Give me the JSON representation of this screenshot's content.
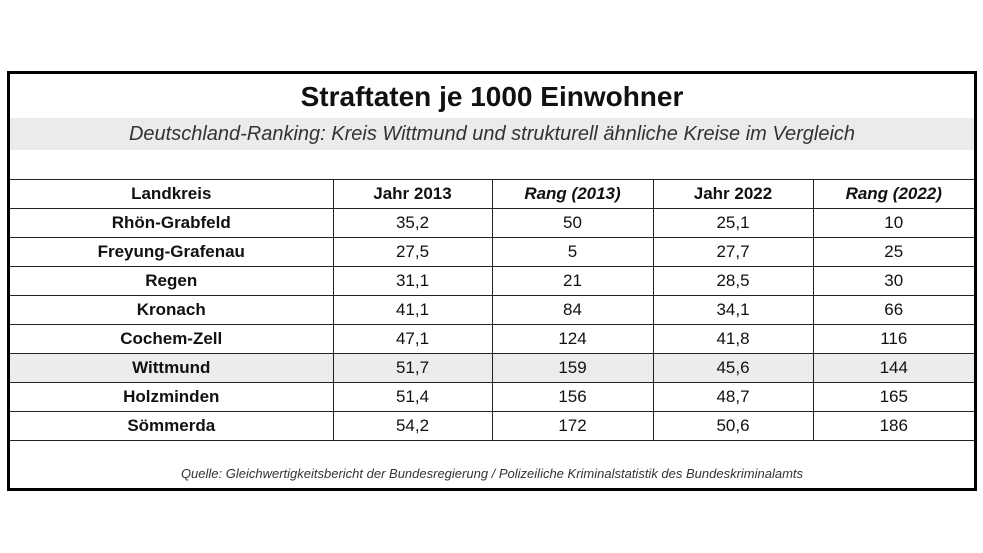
{
  "title": "Straftaten je 1000 Einwohner",
  "subtitle": "Deutschland-Ranking: Kreis Wittmund und strukturell ähnliche Kreise im Vergleich",
  "table": {
    "headers": [
      "Landkreis",
      "Jahr 2013",
      "Rang (2013)",
      "Jahr 2022",
      "Rang (2022)"
    ],
    "rows": [
      [
        "Rhön-Grabfeld",
        "35,2",
        "50",
        "25,1",
        "10"
      ],
      [
        "Freyung-Grafenau",
        "27,5",
        "5",
        "27,7",
        "25"
      ],
      [
        "Regen",
        "31,1",
        "21",
        "28,5",
        "30"
      ],
      [
        "Kronach",
        "41,1",
        "84",
        "34,1",
        "66"
      ],
      [
        "Cochem-Zell",
        "47,1",
        "124",
        "41,8",
        "116"
      ],
      [
        "Wittmund",
        "51,7",
        "159",
        "45,6",
        "144"
      ],
      [
        "Holzminden",
        "51,4",
        "156",
        "48,7",
        "165"
      ],
      [
        "Sömmerda",
        "54,2",
        "172",
        "50,6",
        "186"
      ]
    ],
    "highlighted_row": "Wittmund"
  },
  "source": "Quelle: Gleichwertigkeitsbericht der Bundesregierung / Polizeiliche Kriminalstatistik des Bundeskriminalamts",
  "colors": {
    "border": "#000000",
    "band": "#ebebeb",
    "highlight": "#ececec"
  }
}
